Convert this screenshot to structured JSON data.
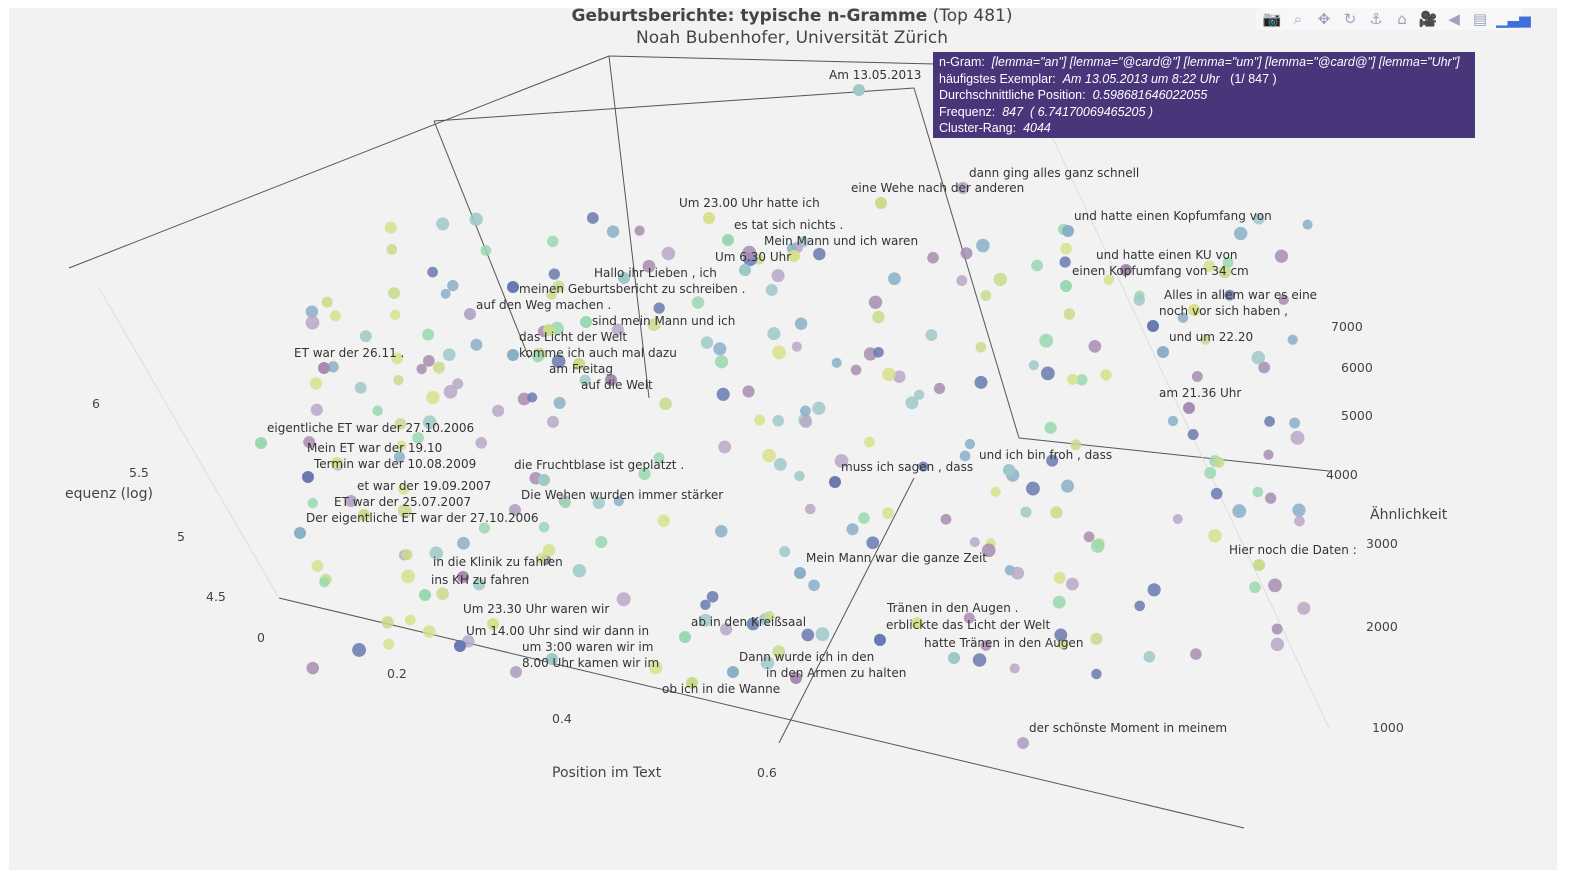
{
  "chart_data": {
    "type": "scatter",
    "title": "Geburtsberichte: typische n-Gramme",
    "title_suffix": "(Top 481)",
    "subtitle": "Noah Bubenhofer, Universität Zürich",
    "xlabel": "Position im Text",
    "ylabel": "Ähnlichkeit",
    "zlabel": "equenz (log)",
    "x_ticks": [
      "0",
      "0.2",
      "0.4",
      "0.6"
    ],
    "y_ticks": [
      "1000",
      "2000",
      "3000",
      "4000",
      "5000",
      "6000",
      "7000"
    ],
    "z_ticks": [
      "4.5",
      "5",
      "5.5",
      "6"
    ],
    "labels": [
      "Am 13.05.2013",
      "dann ging alles ganz schnell",
      "eine Wehe nach der anderen",
      "und hatte einen Kopfumfang von",
      "und hatte einen KU von",
      "einen Kopfumfang von 34 cm",
      "Mein Mann und ich waren",
      "meinen Geburtsbericht zu schreiben .",
      "Hallo ihr Lieben , ich",
      "auf den Weg machen .",
      "das Licht der Welt",
      "komme ich auch mal dazu",
      "ET war der 26.11 .",
      "eigentliche ET war der 27.10.2006",
      "Mein ET war der 19.10",
      "Termin war der 10.08.2009",
      "die Fruchtblase ist geplatzt .",
      "et war der 19.09.2007",
      "ET war der 25.07.2007",
      "Der eigentliche ET war der 27.10.2006",
      "in die Klinik zu fahren",
      "ins KH zu fahren",
      "Um 23.30 Uhr waren wir",
      "Um 14.00 Uhr sind wir dann in",
      "um 3:00 waren wir im",
      "8.00 Uhr kamen wir im",
      "ob ich in die Wanne",
      "Dann wurde ich in den",
      "in den Armen zu halten",
      "ab in den Kreißsaal",
      "Tränen in den Augen .",
      "erblickte das Licht der Welt",
      "hatte Tränen in den Augen",
      "der schönste Moment in meinem",
      "Hier noch die Daten :",
      "Mein Mann war die ganze Zeit",
      "auf die Welt",
      "es tat sich nichts .",
      "Um 23.00 Uhr hatte ich",
      "muss ich sagen , dass",
      "und ich bin froh , dass",
      "Die Wehen wurden immer stärker",
      "am Freitag",
      "und um 22.20",
      "am 21.36 Uhr",
      "sind mein Mann und ich",
      "Alles in allem war es eine",
      "noch vor sich haben ,",
      "Um 6.30 Uhr"
    ],
    "points": 847
  },
  "tooltip": {
    "ngram_label": "n-Gram:",
    "ngram": "[lemma=\"an\"] [lemma=\"@card@\"] [lemma=\"um\"] [lemma=\"@card@\"] [lemma=\"Uhr\"]",
    "example_label": "häufigstes Exemplar:",
    "example": "Am 13.05.2013 um 8:22 Uhr",
    "example_count": "(1/ 847 )",
    "pos_label": "Durchschnittliche Position:",
    "pos": "0.598681646022055",
    "freq_label": "Frequenz:",
    "freq": "847",
    "freq_log": "( 6.74170069465205 )",
    "rank_label": "Cluster-Rang:",
    "rank": "4044"
  },
  "toolbar": [
    "camera",
    "zoom",
    "pan",
    "orbit",
    "turntable",
    "home",
    "camera-video",
    "tag",
    "book",
    "plotly-logo"
  ]
}
